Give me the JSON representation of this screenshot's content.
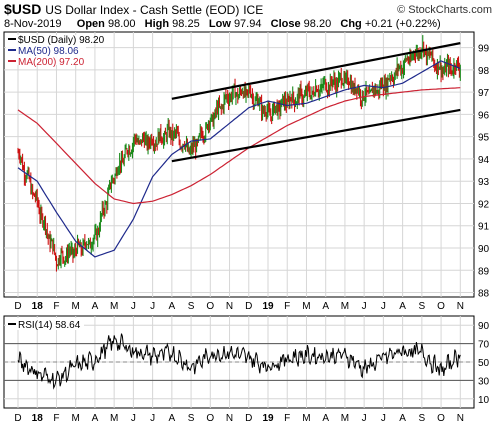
{
  "header": {
    "symbol": "$USD",
    "description": "US Dollar Index - Cash Settle (EOD)",
    "exchange": "ICE",
    "credit": "© StockCharts.com",
    "date": "8-Nov-2019",
    "open_label": "Open",
    "open": "98.00",
    "high_label": "High",
    "high": "98.25",
    "low_label": "Low",
    "low": "97.94",
    "close_label": "Close",
    "close": "98.20",
    "chg_label": "Chg",
    "chg": "+0.21 (+0.22%)"
  },
  "legend": {
    "price": "$USD (Daily) 98.20",
    "ma50": "MA(50) 98.06",
    "ma200": "MA(200) 97.20",
    "rsi": "RSI(14) 58.64"
  },
  "colors": {
    "up_bar": "#1a8a1a",
    "down_bar": "#cc1111",
    "ma50": "#1f2a8c",
    "ma200": "#cc2233",
    "channel": "#000000",
    "grid": "#d6d6d6",
    "rsi_line": "#000000"
  },
  "chart_data": [
    {
      "type": "line",
      "title": "$USD (Daily) 98.20",
      "x_ticks": [
        "D",
        "18",
        "F",
        "M",
        "A",
        "M",
        "J",
        "J",
        "A",
        "S",
        "O",
        "N",
        "D",
        "19",
        "F",
        "M",
        "A",
        "M",
        "J",
        "J",
        "A",
        "S",
        "O",
        "N"
      ],
      "y_ticks": [
        88,
        89,
        90,
        91,
        92,
        93,
        94,
        95,
        96,
        97,
        98,
        99
      ],
      "ylim": [
        87.8,
        99.7
      ],
      "grid": true,
      "series": [
        {
          "name": "$USD (Daily)",
          "x": [
            "2017-12",
            "2018-01",
            "2018-02",
            "2018-03",
            "2018-04",
            "2018-05",
            "2018-06",
            "2018-07",
            "2018-08",
            "2018-09",
            "2018-10",
            "2018-11",
            "2018-12",
            "2019-01",
            "2019-02",
            "2019-03",
            "2019-04",
            "2019-05",
            "2019-06",
            "2019-07",
            "2019-08",
            "2019-09",
            "2019-10",
            "2019-11"
          ],
          "values": [
            94.3,
            92.0,
            89.5,
            89.9,
            90.4,
            93.3,
            94.8,
            94.8,
            95.2,
            94.3,
            95.7,
            96.9,
            97.0,
            96.0,
            96.6,
            96.9,
            97.3,
            97.6,
            96.8,
            97.3,
            98.2,
            99.0,
            98.0,
            98.2
          ]
        },
        {
          "name": "MA(50)",
          "x": [
            "2017-12",
            "2018-01",
            "2018-02",
            "2018-03",
            "2018-04",
            "2018-05",
            "2018-06",
            "2018-07",
            "2018-08",
            "2018-09",
            "2018-10",
            "2018-11",
            "2018-12",
            "2019-01",
            "2019-02",
            "2019-03",
            "2019-04",
            "2019-05",
            "2019-06",
            "2019-07",
            "2019-08",
            "2019-09",
            "2019-10",
            "2019-11"
          ],
          "values": [
            93.6,
            93.0,
            91.6,
            90.3,
            89.6,
            89.9,
            91.3,
            93.2,
            94.2,
            94.8,
            94.9,
            95.6,
            96.3,
            96.6,
            96.4,
            96.5,
            96.8,
            97.1,
            97.3,
            97.2,
            97.4,
            97.9,
            98.4,
            98.06
          ]
        },
        {
          "name": "MA(200)",
          "x": [
            "2017-12",
            "2018-01",
            "2018-02",
            "2018-03",
            "2018-04",
            "2018-05",
            "2018-06",
            "2018-07",
            "2018-08",
            "2018-09",
            "2018-10",
            "2018-11",
            "2018-12",
            "2019-01",
            "2019-02",
            "2019-03",
            "2019-04",
            "2019-05",
            "2019-06",
            "2019-07",
            "2019-08",
            "2019-09",
            "2019-10",
            "2019-11"
          ],
          "values": [
            96.2,
            95.6,
            94.7,
            93.8,
            92.9,
            92.2,
            92.0,
            92.1,
            92.4,
            92.8,
            93.3,
            93.9,
            94.5,
            95.0,
            95.5,
            95.9,
            96.3,
            96.6,
            96.8,
            96.9,
            97.0,
            97.1,
            97.15,
            97.2
          ]
        }
      ],
      "channel": {
        "upper": {
          "from": [
            "2018-08",
            96.7
          ],
          "to": [
            "2019-11",
            99.2
          ]
        },
        "lower": {
          "from": [
            "2018-08",
            93.9
          ],
          "to": [
            "2019-11",
            96.2
          ]
        }
      }
    },
    {
      "type": "line",
      "title": "RSI(14) 58.64",
      "x_ticks": [
        "D",
        "18",
        "F",
        "M",
        "A",
        "M",
        "J",
        "J",
        "A",
        "S",
        "O",
        "N",
        "D",
        "19",
        "F",
        "M",
        "A",
        "M",
        "J",
        "J",
        "A",
        "S",
        "O",
        "N"
      ],
      "y_ticks": [
        10,
        30,
        50,
        70,
        90
      ],
      "ylim": [
        0,
        100
      ],
      "reference_lines": [
        30,
        70
      ],
      "grid": true,
      "series": [
        {
          "name": "RSI(14)",
          "x": [
            "2017-12",
            "2018-01",
            "2018-02",
            "2018-03",
            "2018-04",
            "2018-05",
            "2018-06",
            "2018-07",
            "2018-08",
            "2018-09",
            "2018-10",
            "2018-11",
            "2018-12",
            "2019-01",
            "2019-02",
            "2019-03",
            "2019-04",
            "2019-05",
            "2019-06",
            "2019-07",
            "2019-08",
            "2019-09",
            "2019-10",
            "2019-11"
          ],
          "values": [
            52,
            38,
            30,
            46,
            52,
            74,
            62,
            57,
            60,
            44,
            58,
            60,
            55,
            45,
            54,
            57,
            56,
            58,
            42,
            55,
            62,
            60,
            40,
            58.64
          ]
        }
      ]
    }
  ]
}
